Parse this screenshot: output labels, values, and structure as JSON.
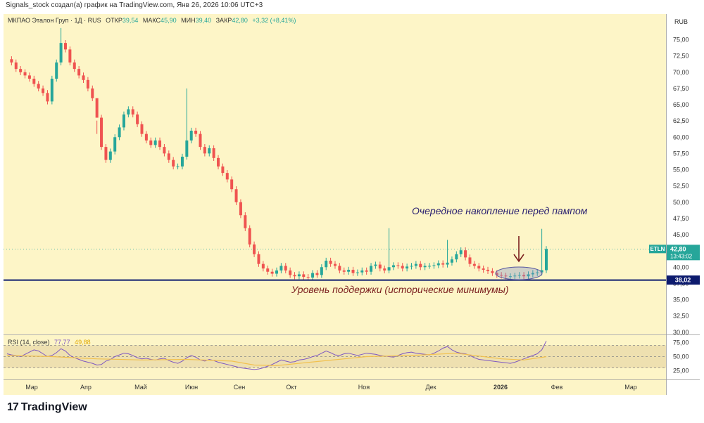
{
  "header": {
    "attribution": "Signals_stock создал(а) график на TradingView.com, Янв 26, 2026 10:06 UTC+3"
  },
  "brand": {
    "logo_mark": "17",
    "logo_text": "TradingView"
  },
  "colors": {
    "up": "#26a69a",
    "down": "#ef5350",
    "bg": "#fdf5c7",
    "support": "#0d1b6e",
    "rsi_line": "#7e57c2",
    "rsi_ma": "#f2c14e",
    "annotation_top": "#2b2171",
    "annotation_bottom": "#7b1f1f"
  },
  "legend": {
    "name": "МКПАО Эталон Груп · 1Д · RUS",
    "o_label": "ОТКР",
    "o": "39,54",
    "h_label": "МАКС",
    "h": "45,90",
    "l_label": "МИН",
    "l": "39,40",
    "c_label": "ЗАКР",
    "c": "42,80",
    "change": "+3,32 (+8,41%)"
  },
  "rsi_legend": {
    "name": "RSI (14, close)",
    "value": "77,77",
    "ma": "49,88"
  },
  "annotations": {
    "top": "Очередное накопление перед пампом",
    "bottom": "Уровень поддержки (исторические минимумы)"
  },
  "chart_data": [
    {
      "type": "candlestick",
      "currency": "RUB",
      "x_labels": [
        "Мар",
        "Апр",
        "Май",
        "Июн",
        "Сен",
        "Окт",
        "Ноя",
        "Дек",
        "2026",
        "Фев",
        "Мар"
      ],
      "y_ticks": [
        "75,00",
        "72,50",
        "70,00",
        "67,50",
        "65,00",
        "62,50",
        "60,00",
        "57,50",
        "55,00",
        "52,50",
        "50,00",
        "47,50",
        "45,00",
        "42,50",
        "40,00",
        "37,50",
        "35,00",
        "32,50",
        "30,00"
      ],
      "ylim": [
        29.0,
        77.5
      ],
      "support_level": 38.02,
      "support_label": "38,02",
      "last_price": 42.8,
      "price_tag": {
        "symbol": "ETLN",
        "price": "42,80",
        "countdown": "13:43:02"
      },
      "close_path": [
        72,
        71.5,
        70.5,
        70,
        69.5,
        69,
        68.2,
        67.5,
        66.8,
        65.5,
        69,
        71.5,
        74.5,
        73.5,
        71.5,
        70.5,
        69.5,
        68.8,
        67.5,
        66,
        63,
        58.5,
        56.5,
        57.8,
        60,
        61.5,
        63.5,
        64.3,
        63.5,
        62,
        60.5,
        59.5,
        58.8,
        59.5,
        58.5,
        57.5,
        56.5,
        55.5,
        55.5,
        57,
        59.5,
        61,
        60.5,
        58.5,
        57.5,
        58.3,
        56.8,
        55.5,
        54.5,
        53.5,
        52,
        50,
        48,
        46,
        43.5,
        42,
        40.5,
        39.8,
        39.3,
        39,
        39.5,
        40.2,
        39.5,
        38.8,
        38.6,
        38.9,
        38.5,
        38.4,
        39.1,
        38.8,
        40,
        41,
        40.5,
        40.2,
        39.5,
        39.3,
        39.6,
        39.1,
        39.2,
        39.5,
        39.3,
        40.2,
        40.4,
        39.8,
        39.5,
        40,
        40.3,
        40.2,
        39.8,
        40.1,
        40.2,
        40.5,
        40,
        40.2,
        40.2,
        40.3,
        40.6,
        40.4,
        40.7,
        41.2,
        42,
        42.6,
        41.5,
        40.5,
        40.2,
        39.8,
        39.6,
        39.4,
        39.1,
        38.8,
        38.7,
        38.6,
        38.6,
        38.7,
        38.8,
        38.6,
        38.9,
        39.1,
        39.2,
        39.54,
        42.8
      ],
      "spikes": [
        {
          "i": 12,
          "high": 76.8
        },
        {
          "i": 20,
          "high": 60.5
        },
        {
          "i": 40,
          "high": 67.5
        },
        {
          "i": 85,
          "high": 46.0
        },
        {
          "i": 98,
          "high": 44.2
        },
        {
          "i": 119,
          "high": 45.9
        }
      ]
    },
    {
      "type": "line",
      "name": "RSI (14, close)",
      "y_ticks": [
        "75,00",
        "50,00",
        "25,00"
      ],
      "ylim": [
        15,
        85
      ],
      "bands": [
        30,
        50,
        70
      ],
      "rsi_path": [
        55,
        53,
        52,
        50,
        54,
        58,
        62,
        60,
        55,
        50,
        52,
        57,
        64,
        60,
        52,
        48,
        45,
        42,
        40,
        38,
        35,
        36,
        42,
        45,
        50,
        53,
        56,
        55,
        52,
        48,
        46,
        47,
        45,
        44,
        46,
        47,
        43,
        40,
        38,
        42,
        48,
        52,
        49,
        44,
        42,
        45,
        43,
        40,
        38,
        36,
        34,
        32,
        30,
        29,
        28,
        27,
        28,
        30,
        33,
        36,
        40,
        44,
        42,
        40,
        41,
        44,
        45,
        47,
        50,
        52,
        56,
        60,
        57,
        53,
        52,
        55,
        56,
        54,
        52,
        54,
        56,
        55,
        54,
        52,
        51,
        50,
        49,
        52,
        55,
        57,
        58,
        56,
        55,
        54,
        53,
        56,
        60,
        65,
        68,
        62,
        58,
        56,
        55,
        52,
        48,
        45,
        44,
        43,
        42,
        41,
        40,
        39,
        38,
        40,
        43,
        46,
        49,
        52,
        55,
        62,
        77.77
      ],
      "ma_path_pairs": [
        [
          0,
          52
        ],
        [
          10,
          50
        ],
        [
          20,
          46
        ],
        [
          30,
          44
        ],
        [
          40,
          45
        ],
        [
          50,
          42
        ],
        [
          55,
          35
        ],
        [
          60,
          34
        ],
        [
          70,
          42
        ],
        [
          80,
          50
        ],
        [
          90,
          52
        ],
        [
          100,
          56
        ],
        [
          110,
          46
        ],
        [
          115,
          44
        ],
        [
          120,
          49.88
        ]
      ]
    }
  ]
}
